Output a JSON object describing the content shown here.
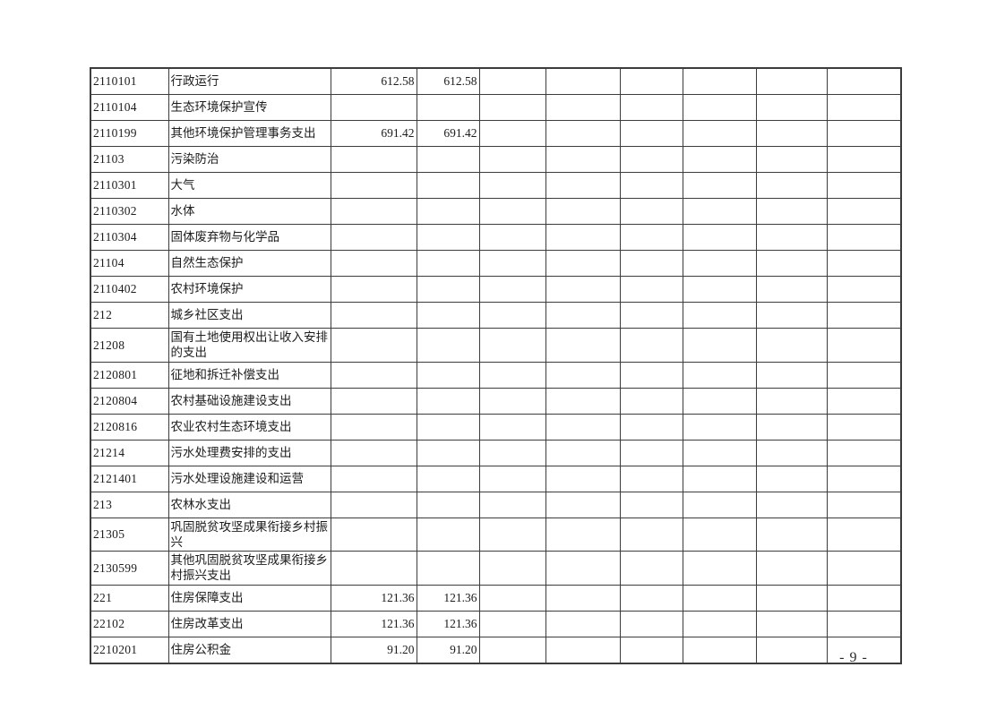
{
  "page_number": "- 9 -",
  "table": {
    "empty_columns": 6,
    "rows": [
      {
        "code": "2110101",
        "name": "行政运行",
        "value1": "612.58",
        "value2": "612.58"
      },
      {
        "code": "2110104",
        "name": "生态环境保护宣传",
        "value1": "",
        "value2": ""
      },
      {
        "code": "2110199",
        "name": "其他环境保护管理事务支出",
        "value1": "691.42",
        "value2": "691.42"
      },
      {
        "code": "21103",
        "name": "污染防治",
        "value1": "",
        "value2": ""
      },
      {
        "code": "2110301",
        "name": "大气",
        "value1": "",
        "value2": ""
      },
      {
        "code": "2110302",
        "name": "水体",
        "value1": "",
        "value2": ""
      },
      {
        "code": "2110304",
        "name": "固体废弃物与化学品",
        "value1": "",
        "value2": ""
      },
      {
        "code": "21104",
        "name": "自然生态保护",
        "value1": "",
        "value2": ""
      },
      {
        "code": "2110402",
        "name": "农村环境保护",
        "value1": "",
        "value2": ""
      },
      {
        "code": "212",
        "name": "城乡社区支出",
        "value1": "",
        "value2": ""
      },
      {
        "code": "21208",
        "name": "国有土地使用权出让收入安排的支出",
        "value1": "",
        "value2": ""
      },
      {
        "code": "2120801",
        "name": "征地和拆迁补偿支出",
        "value1": "",
        "value2": ""
      },
      {
        "code": "2120804",
        "name": "农村基础设施建设支出",
        "value1": "",
        "value2": ""
      },
      {
        "code": "2120816",
        "name": "农业农村生态环境支出",
        "value1": "",
        "value2": ""
      },
      {
        "code": "21214",
        "name": "污水处理费安排的支出",
        "value1": "",
        "value2": ""
      },
      {
        "code": "2121401",
        "name": "污水处理设施建设和运营",
        "value1": "",
        "value2": ""
      },
      {
        "code": "213",
        "name": "农林水支出",
        "value1": "",
        "value2": ""
      },
      {
        "code": "21305",
        "name": "巩固脱贫攻坚成果衔接乡村振兴",
        "value1": "",
        "value2": ""
      },
      {
        "code": "2130599",
        "name": "其他巩固脱贫攻坚成果衔接乡村振兴支出",
        "value1": "",
        "value2": ""
      },
      {
        "code": "221",
        "name": "住房保障支出",
        "value1": "121.36",
        "value2": "121.36"
      },
      {
        "code": "22102",
        "name": "住房改革支出",
        "value1": "121.36",
        "value2": "121.36"
      },
      {
        "code": "2210201",
        "name": "住房公积金",
        "value1": "91.20",
        "value2": "91.20"
      }
    ]
  }
}
